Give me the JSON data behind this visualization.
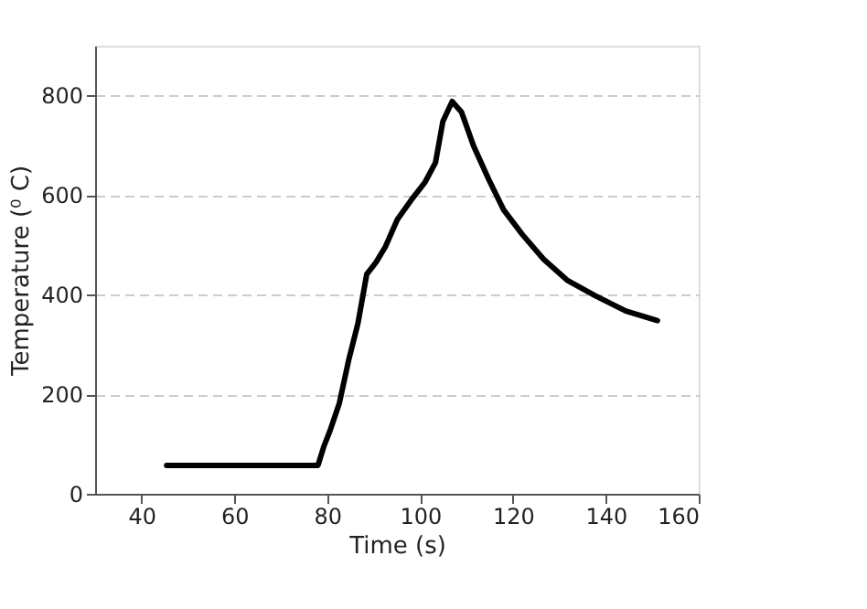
{
  "chart_data": {
    "type": "line",
    "xlabel": "Time (s)",
    "ylabel": "Temperature (⁰ C)",
    "xlim": [
      30,
      160
    ],
    "xticks": [
      40,
      60,
      80,
      100,
      120,
      140,
      160
    ],
    "ylim": [
      0,
      900
    ],
    "yticks": [
      0,
      200,
      400,
      600,
      800
    ],
    "grid": "y",
    "line_style": "solid",
    "marker": "none",
    "series": [
      {
        "color": "#000000",
        "x": [
          45.4,
          78.0,
          79.3,
          80.6,
          82.6,
          84.6,
          86.6,
          88.5,
          90.5,
          92.5,
          95.1,
          98.4,
          101.0,
          103.3,
          104.9,
          106.9,
          108.9,
          111.5,
          114.8,
          118.0,
          122.0,
          126.6,
          131.8,
          137.7,
          144.3,
          151.1
        ],
        "values": [
          57,
          57,
          96,
          127,
          182,
          268,
          342,
          441,
          465,
          496,
          551,
          594,
          625,
          665,
          748,
          788,
          767,
          699,
          631,
          570,
          521,
          471,
          428,
          398,
          367,
          348
        ]
      }
    ]
  }
}
